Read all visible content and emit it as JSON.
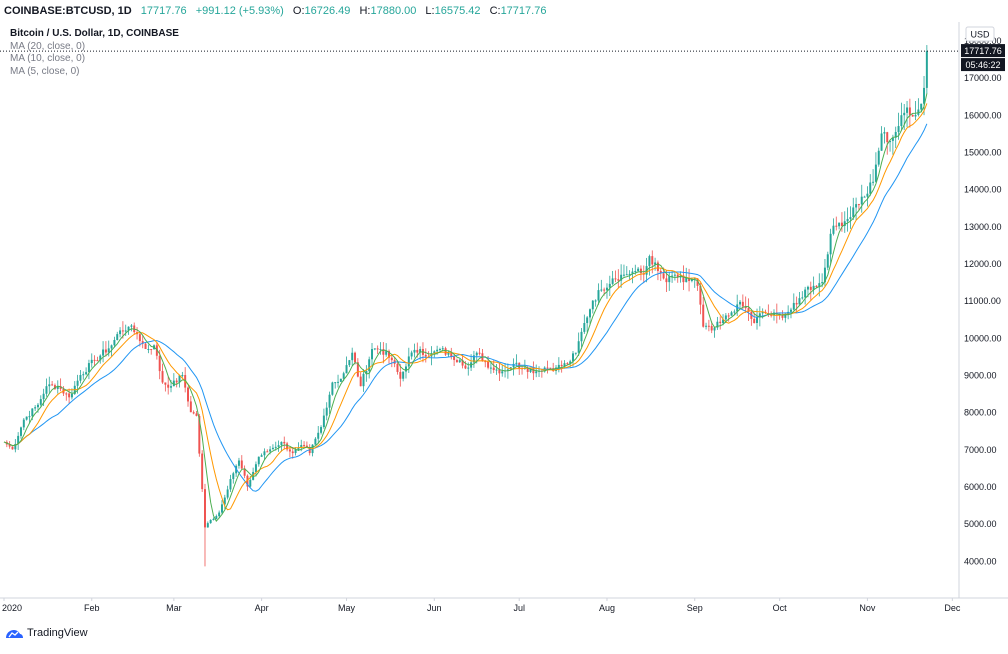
{
  "header": {
    "symbol": "COINBASE:BTCUSD, 1D",
    "price": "17717.76",
    "change": "+991.12 (+5.93%)",
    "open_label": "O:",
    "open": "16726.49",
    "high_label": "H:",
    "high": "17880.00",
    "low_label": "L:",
    "low": "16575.42",
    "close_label": "C:",
    "close": "17717.76"
  },
  "legend": {
    "title": "Bitcoin / U.S. Dollar, 1D, COINBASE",
    "indicators": [
      "MA (20, close, 0)",
      "MA (10, close, 0)",
      "MA (5, close, 0)"
    ]
  },
  "price_scale": {
    "currency": "USD",
    "last_price_label": "17717.76",
    "countdown": "05:46:22"
  },
  "brand": {
    "name": "TradingView"
  },
  "colors": {
    "up": "#26a69a",
    "down": "#ef5350",
    "ma20": "#2196f3",
    "ma10": "#ff9800",
    "ma5": "#4caf50",
    "axis": "#d1d4dc",
    "text": "#131722"
  },
  "chart_data": {
    "type": "candlestick",
    "title": "Bitcoin / U.S. Dollar, 1D, COINBASE",
    "xlabel": "",
    "ylabel": "",
    "x_tick_labels": [
      "2020",
      "Feb",
      "Mar",
      "Apr",
      "May",
      "Jun",
      "Jul",
      "Aug",
      "Sep",
      "Oct",
      "Nov",
      "Dec"
    ],
    "y_tick_labels": [
      "4000.00",
      "5000.00",
      "6000.00",
      "7000.00",
      "8000.00",
      "9000.00",
      "10000.00",
      "11000.00",
      "12000.00",
      "13000.00",
      "14000.00",
      "15000.00",
      "16000.00",
      "17000.00",
      "18000.00"
    ],
    "y_ticks": [
      4000,
      5000,
      6000,
      7000,
      8000,
      9000,
      10000,
      11000,
      12000,
      13000,
      14000,
      15000,
      16000,
      17000,
      18000
    ],
    "ylim": [
      3000,
      18500
    ],
    "x_range_days": [
      0,
      345
    ],
    "month_start_days": [
      0,
      31,
      60,
      91,
      121,
      152,
      182,
      213,
      244,
      274,
      305,
      335
    ],
    "last_price": 17717.76,
    "moving_averages": [
      {
        "name": "MA (20, close, 0)",
        "period": 20,
        "color": "#2196f3"
      },
      {
        "name": "MA (10, close, 0)",
        "period": 10,
        "color": "#ff9800"
      },
      {
        "name": "MA (5, close, 0)",
        "period": 5,
        "color": "#4caf50"
      }
    ],
    "close_anchors": [
      [
        0,
        7200
      ],
      [
        3,
        7000
      ],
      [
        7,
        7800
      ],
      [
        12,
        8200
      ],
      [
        15,
        8700
      ],
      [
        19,
        8700
      ],
      [
        23,
        8400
      ],
      [
        27,
        9000
      ],
      [
        32,
        9400
      ],
      [
        38,
        9800
      ],
      [
        41,
        10200
      ],
      [
        44,
        10300
      ],
      [
        47,
        10100
      ],
      [
        50,
        9700
      ],
      [
        53,
        9800
      ],
      [
        56,
        8800
      ],
      [
        59,
        8700
      ],
      [
        63,
        9000
      ],
      [
        66,
        8000
      ],
      [
        68,
        7900
      ],
      [
        71,
        4900
      ],
      [
        73,
        5100
      ],
      [
        76,
        5300
      ],
      [
        80,
        6200
      ],
      [
        83,
        6700
      ],
      [
        86,
        6000
      ],
      [
        90,
        6800
      ],
      [
        94,
        7000
      ],
      [
        98,
        7200
      ],
      [
        102,
        6900
      ],
      [
        106,
        7100
      ],
      [
        108,
        6900
      ],
      [
        112,
        7600
      ],
      [
        116,
        8800
      ],
      [
        119,
        8900
      ],
      [
        122,
        9400
      ],
      [
        123,
        9600
      ],
      [
        126,
        8700
      ],
      [
        130,
        9700
      ],
      [
        133,
        9700
      ],
      [
        137,
        9400
      ],
      [
        140,
        8900
      ],
      [
        143,
        9500
      ],
      [
        147,
        9700
      ],
      [
        150,
        9500
      ],
      [
        154,
        9700
      ],
      [
        158,
        9500
      ],
      [
        161,
        9400
      ],
      [
        164,
        9200
      ],
      [
        167,
        9600
      ],
      [
        172,
        9200
      ],
      [
        176,
        9100
      ],
      [
        180,
        9300
      ],
      [
        184,
        9200
      ],
      [
        188,
        9100
      ],
      [
        191,
        9200
      ],
      [
        195,
        9200
      ],
      [
        199,
        9300
      ],
      [
        202,
        9600
      ],
      [
        205,
        10400
      ],
      [
        208,
        11000
      ],
      [
        211,
        11300
      ],
      [
        215,
        11600
      ],
      [
        219,
        11700
      ],
      [
        223,
        11800
      ],
      [
        226,
        11700
      ],
      [
        228,
        12200
      ],
      [
        231,
        11800
      ],
      [
        234,
        11500
      ],
      [
        237,
        11700
      ],
      [
        240,
        11500
      ],
      [
        244,
        11600
      ],
      [
        245,
        11400
      ],
      [
        247,
        10300
      ],
      [
        250,
        10200
      ],
      [
        253,
        10400
      ],
      [
        256,
        10600
      ],
      [
        259,
        10900
      ],
      [
        262,
        10800
      ],
      [
        265,
        10400
      ],
      [
        268,
        10700
      ],
      [
        271,
        10600
      ],
      [
        274,
        10600
      ],
      [
        277,
        10700
      ],
      [
        280,
        10900
      ],
      [
        283,
        11300
      ],
      [
        286,
        11400
      ],
      [
        289,
        11500
      ],
      [
        292,
        12800
      ],
      [
        295,
        13100
      ],
      [
        298,
        13200
      ],
      [
        301,
        13600
      ],
      [
        304,
        13800
      ],
      [
        307,
        14200
      ],
      [
        310,
        15500
      ],
      [
        313,
        15300
      ],
      [
        316,
        15700
      ],
      [
        319,
        16200
      ],
      [
        322,
        16000
      ],
      [
        324,
        16300
      ],
      [
        325,
        16726.49
      ],
      [
        326,
        17717.76
      ]
    ]
  }
}
